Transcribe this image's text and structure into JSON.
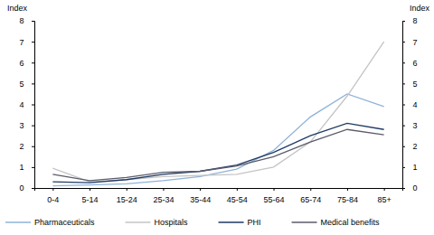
{
  "chart_data": {
    "type": "line",
    "y_label": "Index",
    "y2_label": "Index",
    "categories": [
      "0-4",
      "5-14",
      "15-24",
      "25-34",
      "35-44",
      "45-54",
      "55-64",
      "65-74",
      "75-84",
      "85+"
    ],
    "series": [
      {
        "name": "Pharmaceuticals",
        "color": "#8fb3d9",
        "values": [
          0.1,
          0.15,
          0.2,
          0.35,
          0.55,
          0.9,
          1.8,
          3.4,
          4.5,
          3.9
        ]
      },
      {
        "name": "Hospitals",
        "color": "#c4c4c4",
        "values": [
          0.95,
          0.3,
          0.4,
          0.55,
          0.6,
          0.65,
          1.0,
          2.2,
          4.4,
          7.0
        ]
      },
      {
        "name": "PHI",
        "color": "#1f3a63",
        "values": [
          0.3,
          0.25,
          0.4,
          0.65,
          0.8,
          1.1,
          1.7,
          2.5,
          3.1,
          2.8
        ]
      },
      {
        "name": "Medical benefits",
        "color": "#5b5b6b",
        "values": [
          0.65,
          0.35,
          0.5,
          0.75,
          0.8,
          1.05,
          1.5,
          2.2,
          2.8,
          2.55
        ]
      }
    ],
    "ylim": [
      0,
      8
    ],
    "yticks": [
      0,
      1,
      2,
      3,
      4,
      5,
      6,
      7,
      8
    ],
    "y2lim": [
      0,
      8
    ],
    "y2ticks": [
      0,
      1,
      2,
      3,
      4,
      5,
      6,
      7,
      8
    ],
    "grid": false,
    "legend": "bottom"
  }
}
